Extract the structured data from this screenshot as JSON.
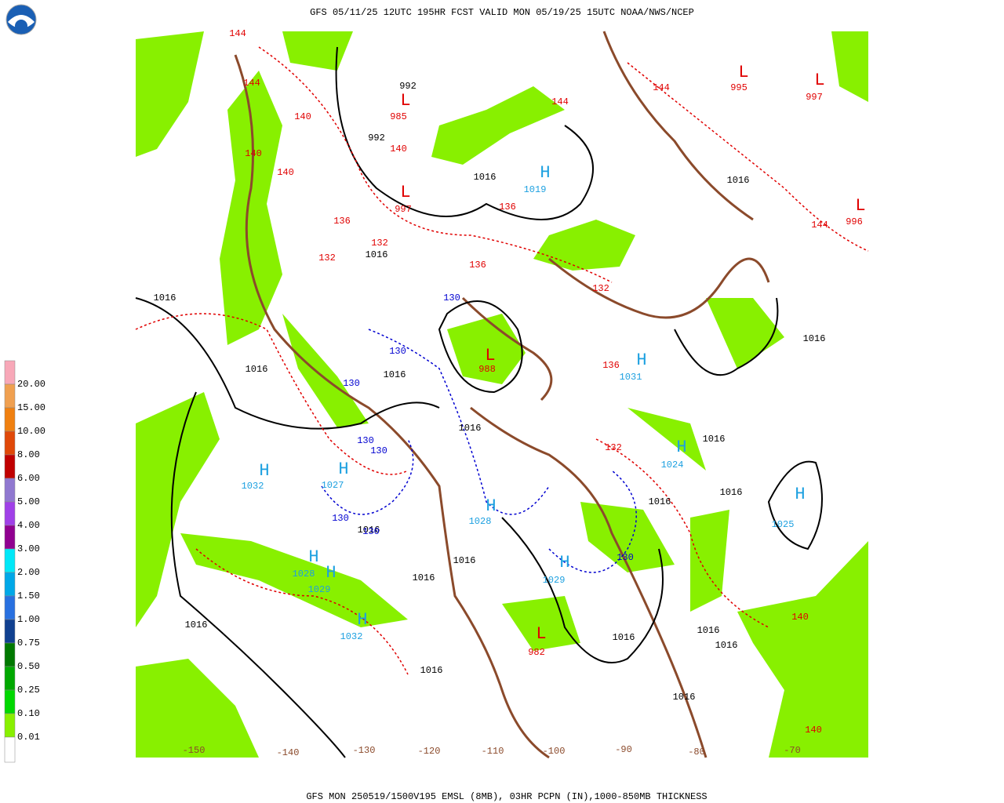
{
  "header": {
    "title": "GFS 05/11/25 12UTC 195HR FCST VALID MON 05/19/25 15UTC NOAA/NWS/NCEP"
  },
  "footer": {
    "caption": "GFS MON 250519/1500V195 EMSL (8MB), 03HR PCPN (IN),1000-850MB THICKNESS"
  },
  "legend": {
    "labels": [
      "20.00",
      "15.00",
      "10.00",
      "8.00",
      "6.00",
      "5.00",
      "4.00",
      "3.00",
      "2.00",
      "1.50",
      "1.00",
      "0.75",
      "0.50",
      "0.25",
      "0.10",
      "0.01"
    ],
    "colors": [
      "#f8a8b8",
      "#f0a050",
      "#f08010",
      "#e04808",
      "#c00000",
      "#9078d0",
      "#a040e8",
      "#900090",
      "#00e8f8",
      "#00a8e8",
      "#2870e0",
      "#104090",
      "#007800",
      "#00a800",
      "#00d800",
      "#88f000"
    ],
    "zero_color": "#ffffff"
  },
  "map": {
    "high_color": "#1ca0e0",
    "low_color": "#e00000",
    "isobar_color": "#000000",
    "thickness_color": "#e00000",
    "cold_color": "#0000d0",
    "longitude_color": "#8b4a2b",
    "highs": [
      {
        "symbol": "H",
        "value": "1032"
      },
      {
        "symbol": "H",
        "value": "1027"
      },
      {
        "symbol": "H",
        "value": "1028"
      },
      {
        "symbol": "H",
        "value": "1029"
      },
      {
        "symbol": "H",
        "value": "1032"
      },
      {
        "symbol": "H",
        "value": "1024"
      },
      {
        "symbol": "H",
        "value": "1025"
      },
      {
        "symbol": "H",
        "value": "1028"
      },
      {
        "symbol": "H",
        "value": "1029"
      },
      {
        "symbol": "H",
        "value": "1031"
      },
      {
        "symbol": "H",
        "value": "1019"
      }
    ],
    "lows": [
      {
        "symbol": "L",
        "value": "985"
      },
      {
        "symbol": "L",
        "value": "997"
      },
      {
        "symbol": "L",
        "value": "988"
      },
      {
        "symbol": "L",
        "value": "982"
      },
      {
        "symbol": "L",
        "value": "997"
      },
      {
        "symbol": "L",
        "value": "996"
      },
      {
        "symbol": "L",
        "value": "995"
      }
    ],
    "isobar_labels": [
      "1016",
      "1016",
      "1016",
      "1016",
      "1016",
      "1016",
      "1016",
      "1016",
      "1016",
      "1016",
      "1016",
      "1016",
      "1016",
      "1016",
      "1016",
      "1016",
      "1016",
      "1016",
      "1016",
      "1016",
      "992",
      "992"
    ],
    "thickness_labels": [
      "144",
      "144",
      "144",
      "144",
      "144",
      "140",
      "140",
      "140",
      "140",
      "140",
      "140",
      "136",
      "136",
      "136",
      "136",
      "132",
      "132",
      "132",
      "132"
    ],
    "cold_labels": [
      "130",
      "130",
      "130",
      "130",
      "130",
      "130",
      "130",
      "130"
    ],
    "longitudes": [
      "-150",
      "-140",
      "-130",
      "-120",
      "-110",
      "-100",
      "-90",
      "-80",
      "-70"
    ]
  }
}
